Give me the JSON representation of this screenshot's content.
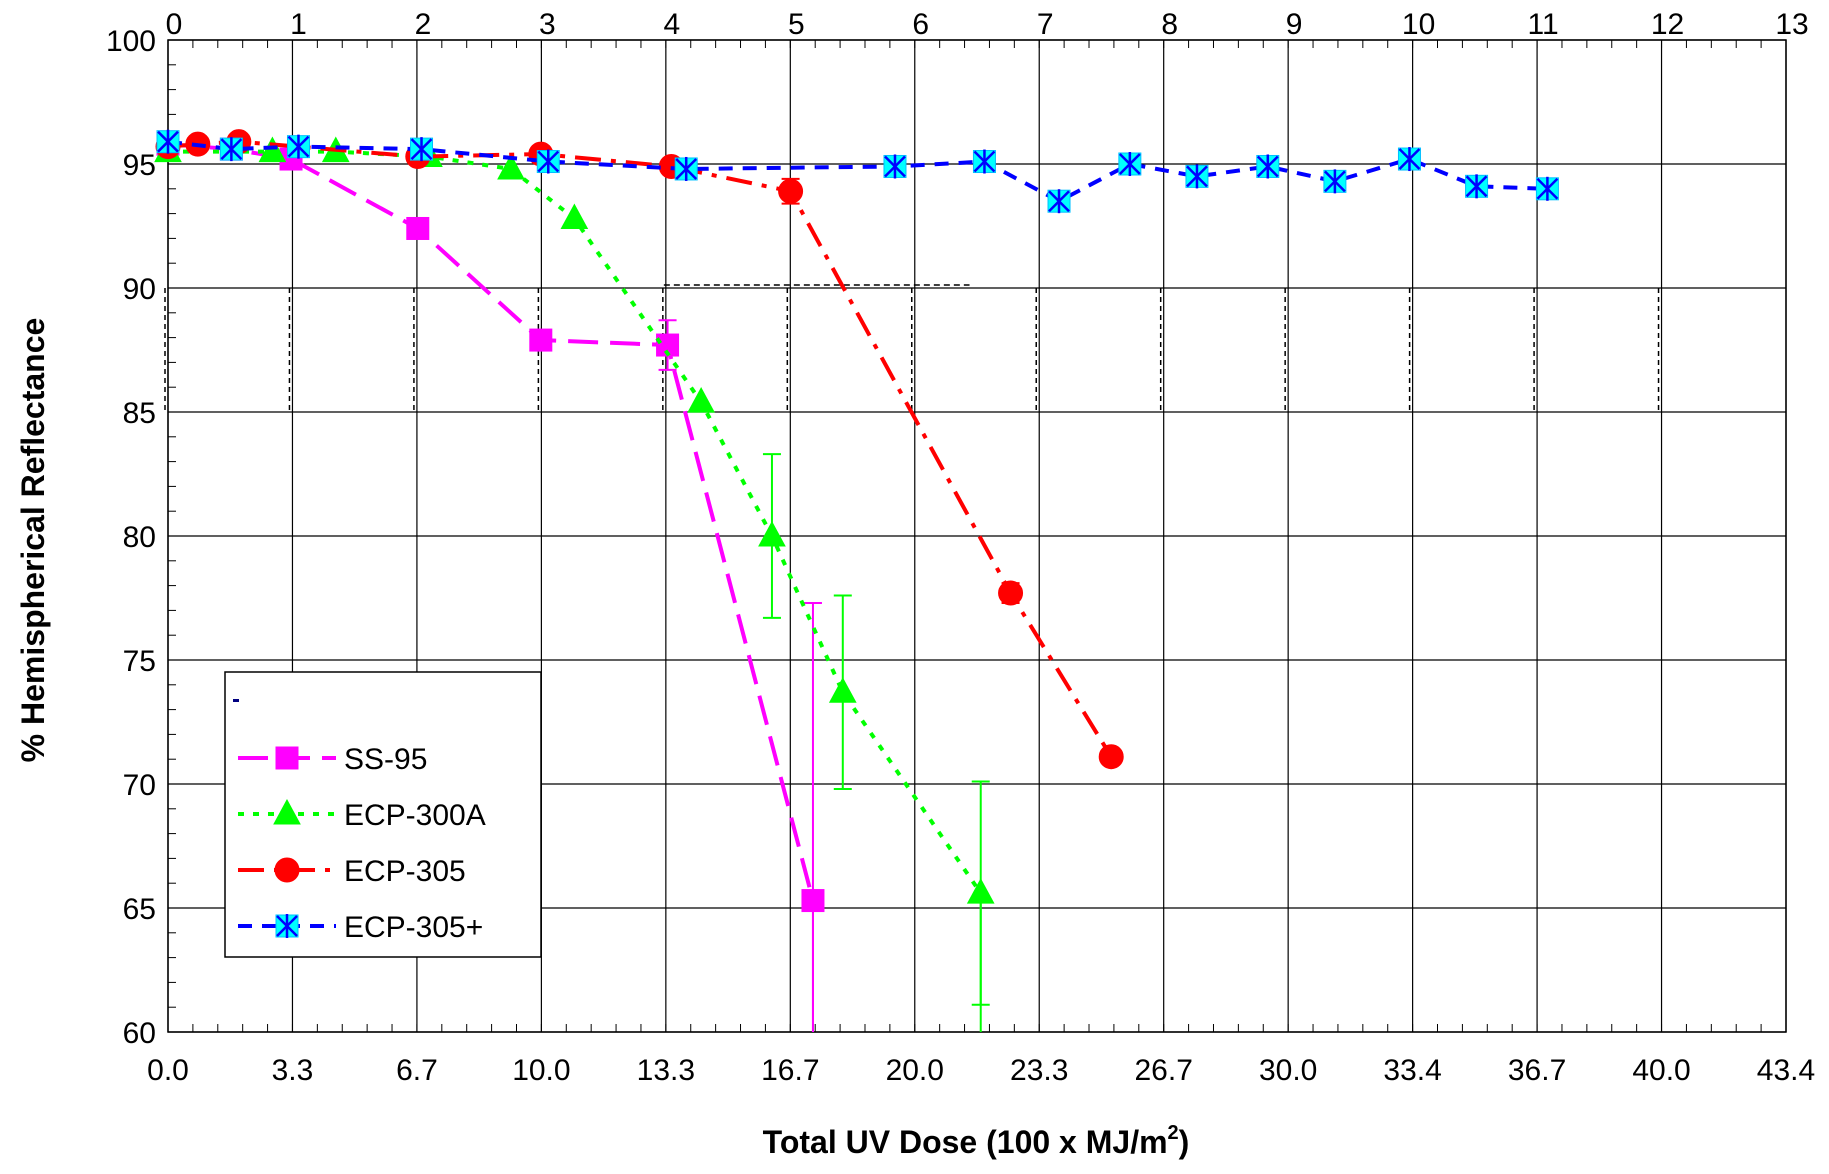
{
  "chart_data": {
    "type": "line",
    "xlabel": "Total UV Dose  (100 x MJ/m",
    "xlabel_sup": "2",
    "xlabel_end": ")",
    "ylabel": "% Hemispherical Reflectance",
    "xlim": [
      0,
      43.4
    ],
    "ylim": [
      60,
      100
    ],
    "x_ticks": [
      "0.0",
      "3.3",
      "6.7",
      "10.0",
      "13.3",
      "16.7",
      "20.0",
      "23.3",
      "26.7",
      "30.0",
      "33.4",
      "36.7",
      "40.0",
      "43.4"
    ],
    "y_ticks": [
      "60",
      "65",
      "70",
      "75",
      "80",
      "85",
      "90",
      "95",
      "100"
    ],
    "top_ticks": [
      "0",
      "1",
      "2",
      "3",
      "4",
      "5",
      "6",
      "7",
      "8",
      "9",
      "10",
      "11",
      "12",
      "13"
    ],
    "grid": true,
    "legend_position": "bottom-left",
    "series": [
      {
        "name": "SS-95",
        "color": "#FF00FF",
        "marker": "square",
        "dash": "long-dash",
        "x": [
          0,
          1.7,
          3.3,
          6.7,
          10.0,
          13.4,
          17.3
        ],
        "y": [
          95.8,
          95.6,
          95.2,
          92.4,
          87.9,
          87.7,
          65.3
        ],
        "error": [
          null,
          null,
          null,
          null,
          null,
          1.0,
          12.0
        ]
      },
      {
        "name": "ECP-300A",
        "color": "#00FF00",
        "marker": "triangle",
        "dash": "dotted",
        "x": [
          0,
          2.8,
          4.5,
          7.0,
          9.2,
          10.9,
          14.3,
          16.2,
          18.1,
          21.8
        ],
        "y": [
          95.5,
          95.5,
          95.5,
          95.3,
          94.8,
          92.8,
          85.4,
          80.0,
          73.7,
          65.6
        ],
        "error": [
          null,
          null,
          null,
          null,
          null,
          null,
          null,
          3.3,
          3.9,
          4.5
        ]
      },
      {
        "name": "ECP-305",
        "color": "#FF0000",
        "marker": "circle",
        "dash": "dash-dot",
        "x": [
          0,
          0.8,
          1.9,
          6.7,
          10.0,
          13.5,
          16.7,
          22.6,
          25.3
        ],
        "y": [
          95.7,
          95.8,
          95.9,
          95.3,
          95.4,
          94.9,
          93.9,
          77.7,
          71.1
        ],
        "error": [
          null,
          null,
          null,
          null,
          null,
          null,
          0.5,
          0.4,
          null
        ]
      },
      {
        "name": "ECP-305+",
        "color": "#0000FF",
        "marker": "asterisk",
        "dash": "dashed",
        "x": [
          0,
          1.7,
          3.5,
          6.8,
          10.2,
          13.9,
          19.5,
          21.9,
          23.9,
          25.8,
          27.6,
          29.5,
          31.3,
          33.3,
          35.1,
          37.0
        ],
        "y": [
          95.9,
          95.6,
          95.7,
          95.6,
          95.1,
          94.8,
          94.9,
          95.1,
          93.5,
          95.0,
          94.5,
          94.9,
          94.3,
          95.2,
          94.1,
          94.0
        ],
        "error": [
          null,
          null,
          null,
          null,
          null,
          null,
          null,
          null,
          null,
          null,
          null,
          null,
          null,
          null,
          null,
          null
        ]
      }
    ]
  }
}
